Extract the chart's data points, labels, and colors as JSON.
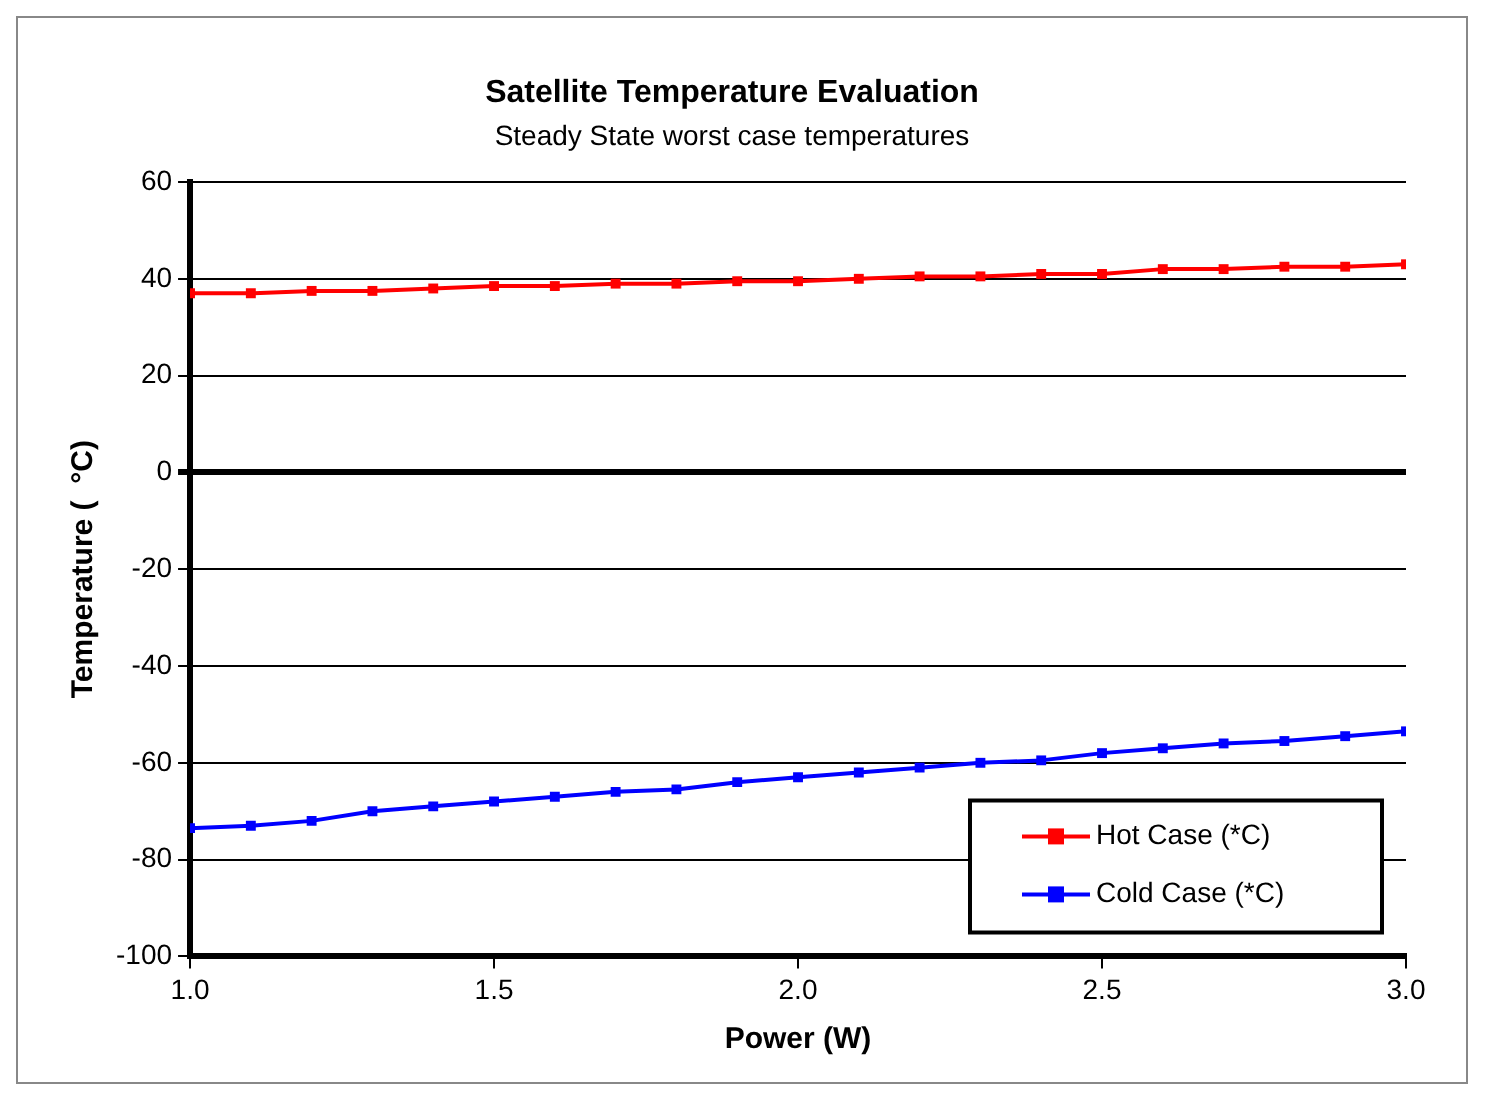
{
  "chart_data": {
    "type": "line",
    "title": "Satellite Temperature Evaluation",
    "subtitle": "Steady State worst case temperatures",
    "xlabel": "Power (W)",
    "ylabel": "Temperature (  °C)",
    "x": [
      1.0,
      1.1,
      1.2,
      1.3,
      1.4,
      1.5,
      1.6,
      1.7,
      1.8,
      1.9,
      2.0,
      2.1,
      2.2,
      2.3,
      2.4,
      2.5,
      2.6,
      2.7,
      2.8,
      2.9,
      3.0
    ],
    "series": [
      {
        "name": "Hot Case (*C)",
        "color": "#ff0000",
        "values": [
          37,
          37,
          37.5,
          37.5,
          38,
          38.5,
          38.5,
          39,
          39,
          39.5,
          39.5,
          40,
          40.5,
          40.5,
          41,
          41,
          42,
          42,
          42.5,
          42.5,
          43
        ]
      },
      {
        "name": "Cold Case (*C)",
        "color": "#0000ff",
        "values": [
          -73.5,
          -73,
          -72,
          -70,
          -69,
          -68,
          -67,
          -66,
          -65.5,
          -64,
          -63,
          -62,
          -61,
          -60,
          -59.5,
          -58,
          -57,
          -56,
          -55.5,
          -54.5,
          -53.5
        ]
      }
    ],
    "xlim": [
      1.0,
      3.0
    ],
    "xticks": [
      {
        "value": 1,
        "label": "1.0"
      },
      {
        "value": 1.5,
        "label": "1.5"
      },
      {
        "value": 2,
        "label": "2.0"
      },
      {
        "value": 2.5,
        "label": "2.5"
      },
      {
        "value": 3,
        "label": "3.0"
      }
    ],
    "ylim": [
      -100,
      60
    ],
    "yticks": [
      -100,
      -80,
      -60,
      -40,
      -20,
      0,
      20,
      40,
      60
    ],
    "grid": "y",
    "legend": "bottom right",
    "marker": "square",
    "line_style": "solid"
  }
}
